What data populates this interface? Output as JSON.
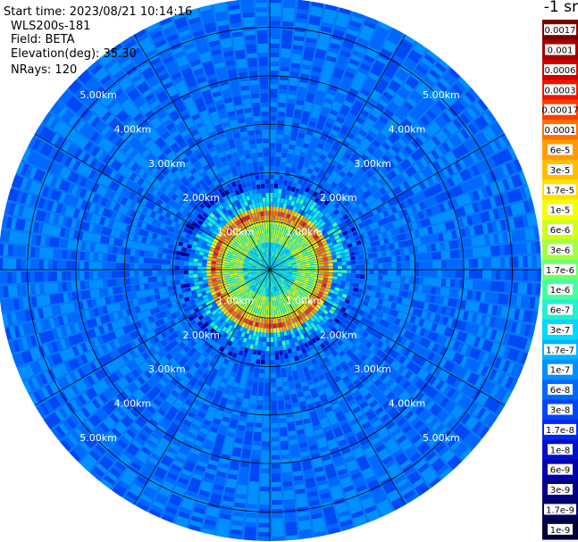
{
  "header": {
    "start_time": "Start time: 2023/08/21 10:14:16",
    "instrument": "WLS200s-181",
    "field": "Field: BETA",
    "elevation": "Elevation(deg): 35.30",
    "nrays": "NRays: 120"
  },
  "chart_data": {
    "type": "heatmap",
    "projection": "polar-ppi",
    "field": "BETA",
    "n_rays": 120,
    "elevation_deg": 35.3,
    "range_unit": "km",
    "range_max_km": 5.6,
    "range_rings_km": [
      1,
      2,
      3,
      4,
      5
    ],
    "range_labels": [
      "1.00km",
      "2.00km",
      "3.00km",
      "4.00km",
      "5.00km"
    ],
    "range_label_azimuths_deg": [
      45,
      135,
      225,
      315
    ],
    "spokes_deg": [
      0,
      30,
      60,
      90,
      120,
      150,
      180,
      210,
      240,
      270,
      300,
      330
    ],
    "colorbar": {
      "title": "-1 sr",
      "scale": "log",
      "ticks": [
        "0.0017",
        "0.001",
        "0.0006",
        "0.0003",
        "0.00017",
        "0.0001",
        "6e-5",
        "3e-5",
        "1.7e-5",
        "1e-5",
        "6e-6",
        "3e-6",
        "1.7e-6",
        "1e-6",
        "6e-7",
        "3e-7",
        "1.7e-7",
        "1e-7",
        "6e-8",
        "3e-8",
        "1.7e-8",
        "1e-8",
        "6e-9",
        "3e-9",
        "1.7e-9",
        "1e-9"
      ],
      "colors": [
        "#7a0000",
        "#a50000",
        "#cc0000",
        "#ee1400",
        "#ff3c00",
        "#ff7000",
        "#ff9a00",
        "#ffbe00",
        "#ffe000",
        "#f4ff00",
        "#d0ff18",
        "#a4ff40",
        "#70ff6e",
        "#44ffa0",
        "#22f0d0",
        "#00d8ff",
        "#00b4ff",
        "#0090ff",
        "#0068ff",
        "#0048f6",
        "#0028e8",
        "#0010cc",
        "#0000ac",
        "#000088",
        "#000060",
        "#000038"
      ]
    },
    "near_range_ring_km": [
      0.95,
      1.35
    ],
    "near_range_ring_level": "1.7e-5 to 6e-6 (yellow-red)",
    "background_level": "3e-8 to 1e-7 (blue)"
  }
}
